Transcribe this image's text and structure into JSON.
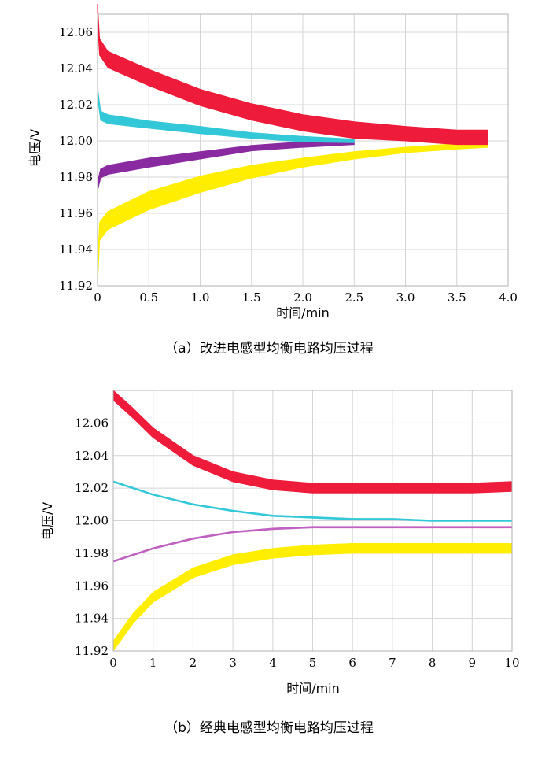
{
  "chart_data": [
    {
      "type": "line",
      "id": "a",
      "caption": "（a）改进电感型均衡电路均压过程",
      "xlabel": "时间/min",
      "ylabel": "电压/V",
      "xlim": [
        0,
        4.0
      ],
      "ylim": [
        11.92,
        12.07
      ],
      "xticks": [
        "0",
        "0.5",
        "1.0",
        "1.5",
        "2.0",
        "2.5",
        "3.0",
        "3.5",
        "4.0"
      ],
      "yticks": [
        "11.92",
        "11.94",
        "11.96",
        "11.98",
        "12.00",
        "12.02",
        "12.04",
        "12.06"
      ],
      "grid": true,
      "series": [
        {
          "color": "#ffee00",
          "x": [
            0,
            0.02,
            0.1,
            0.5,
            1.0,
            1.5,
            2.0,
            2.5,
            3.0,
            3.5,
            3.8
          ],
          "y": [
            11.925,
            11.95,
            11.956,
            11.967,
            11.976,
            11.983,
            11.988,
            11.992,
            11.995,
            11.997,
            11.998
          ],
          "band": [
            0.01,
            0.01,
            0.01,
            0.01,
            0.009,
            0.007,
            0.005,
            0.004,
            0.003,
            0.003,
            0.003
          ]
        },
        {
          "color": "#8a2aa0",
          "x": [
            0,
            0.03,
            0.1,
            0.5,
            1.0,
            1.5,
            2.0,
            2.5
          ],
          "y": [
            11.975,
            11.982,
            11.984,
            11.988,
            11.992,
            11.996,
            11.998,
            11.999
          ],
          "band": [
            0.005,
            0.005,
            0.005,
            0.005,
            0.004,
            0.003,
            0.003,
            0.002
          ]
        },
        {
          "color": "#33c8d8",
          "x": [
            0,
            0.03,
            0.1,
            0.5,
            1.0,
            1.5,
            2.0,
            2.5
          ],
          "y": [
            12.027,
            12.014,
            12.012,
            12.009,
            12.006,
            12.003,
            12.001,
            12.0
          ],
          "band": [
            0.005,
            0.005,
            0.005,
            0.004,
            0.004,
            0.003,
            0.003,
            0.002
          ]
        },
        {
          "color": "#ee1c3a",
          "x": [
            0,
            0.02,
            0.1,
            0.5,
            1.0,
            1.5,
            2.0,
            2.5,
            3.0,
            3.5,
            3.8
          ],
          "y": [
            12.071,
            12.052,
            12.045,
            12.035,
            12.024,
            12.016,
            12.01,
            12.006,
            12.004,
            12.002,
            12.002
          ],
          "band": [
            0.009,
            0.009,
            0.009,
            0.009,
            0.009,
            0.009,
            0.009,
            0.009,
            0.008,
            0.008,
            0.008
          ]
        }
      ]
    },
    {
      "type": "line",
      "id": "b",
      "caption": "（b）经典电感型均衡电路均压过程",
      "xlabel": "时间/min",
      "ylabel": "电压/V",
      "xlim": [
        0,
        10
      ],
      "ylim": [
        11.92,
        12.08
      ],
      "xticks": [
        "0",
        "1",
        "2",
        "3",
        "4",
        "5",
        "6",
        "7",
        "8",
        "9",
        "10"
      ],
      "yticks": [
        "11.92",
        "11.94",
        "11.96",
        "11.98",
        "12.00",
        "12.02",
        "12.04",
        "12.06"
      ],
      "grid": true,
      "series": [
        {
          "color": "#ee1c3a",
          "x": [
            0,
            0.5,
            1,
            2,
            3,
            4,
            5,
            6,
            7,
            8,
            9,
            10
          ],
          "y": [
            12.077,
            12.066,
            12.054,
            12.037,
            12.027,
            12.022,
            12.02,
            12.02,
            12.02,
            12.02,
            12.02,
            12.021
          ],
          "band": [
            0.006,
            0.006,
            0.006,
            0.006,
            0.006,
            0.006,
            0.006,
            0.006,
            0.006,
            0.006,
            0.006,
            0.006
          ]
        },
        {
          "color": "#33c8d8",
          "x": [
            0,
            1,
            2,
            3,
            4,
            5,
            6,
            7,
            8,
            9,
            10
          ],
          "y": [
            12.024,
            12.016,
            12.01,
            12.006,
            12.003,
            12.002,
            12.001,
            12.001,
            12.0,
            12.0,
            12.0
          ],
          "band": [
            0.0008,
            0.0008,
            0.0008,
            0.0008,
            0.0008,
            0.0008,
            0.0008,
            0.0008,
            0.0008,
            0.0008,
            0.0008
          ]
        },
        {
          "color": "#c060c0",
          "x": [
            0,
            1,
            2,
            3,
            4,
            5,
            6,
            7,
            8,
            9,
            10
          ],
          "y": [
            11.975,
            11.983,
            11.989,
            11.993,
            11.995,
            11.996,
            11.996,
            11.996,
            11.996,
            11.996,
            11.996
          ],
          "band": [
            0.0008,
            0.0008,
            0.0008,
            0.0008,
            0.0008,
            0.0008,
            0.0008,
            0.0008,
            0.0008,
            0.0008,
            0.0008
          ]
        },
        {
          "color": "#ffee00",
          "x": [
            0,
            0.5,
            1,
            2,
            3,
            4,
            5,
            6,
            7,
            8,
            9,
            10
          ],
          "y": [
            11.923,
            11.94,
            11.953,
            11.968,
            11.976,
            11.98,
            11.982,
            11.983,
            11.983,
            11.983,
            11.983,
            11.983
          ],
          "band": [
            0.006,
            0.006,
            0.006,
            0.006,
            0.006,
            0.006,
            0.006,
            0.006,
            0.006,
            0.006,
            0.006,
            0.006
          ]
        }
      ]
    }
  ]
}
